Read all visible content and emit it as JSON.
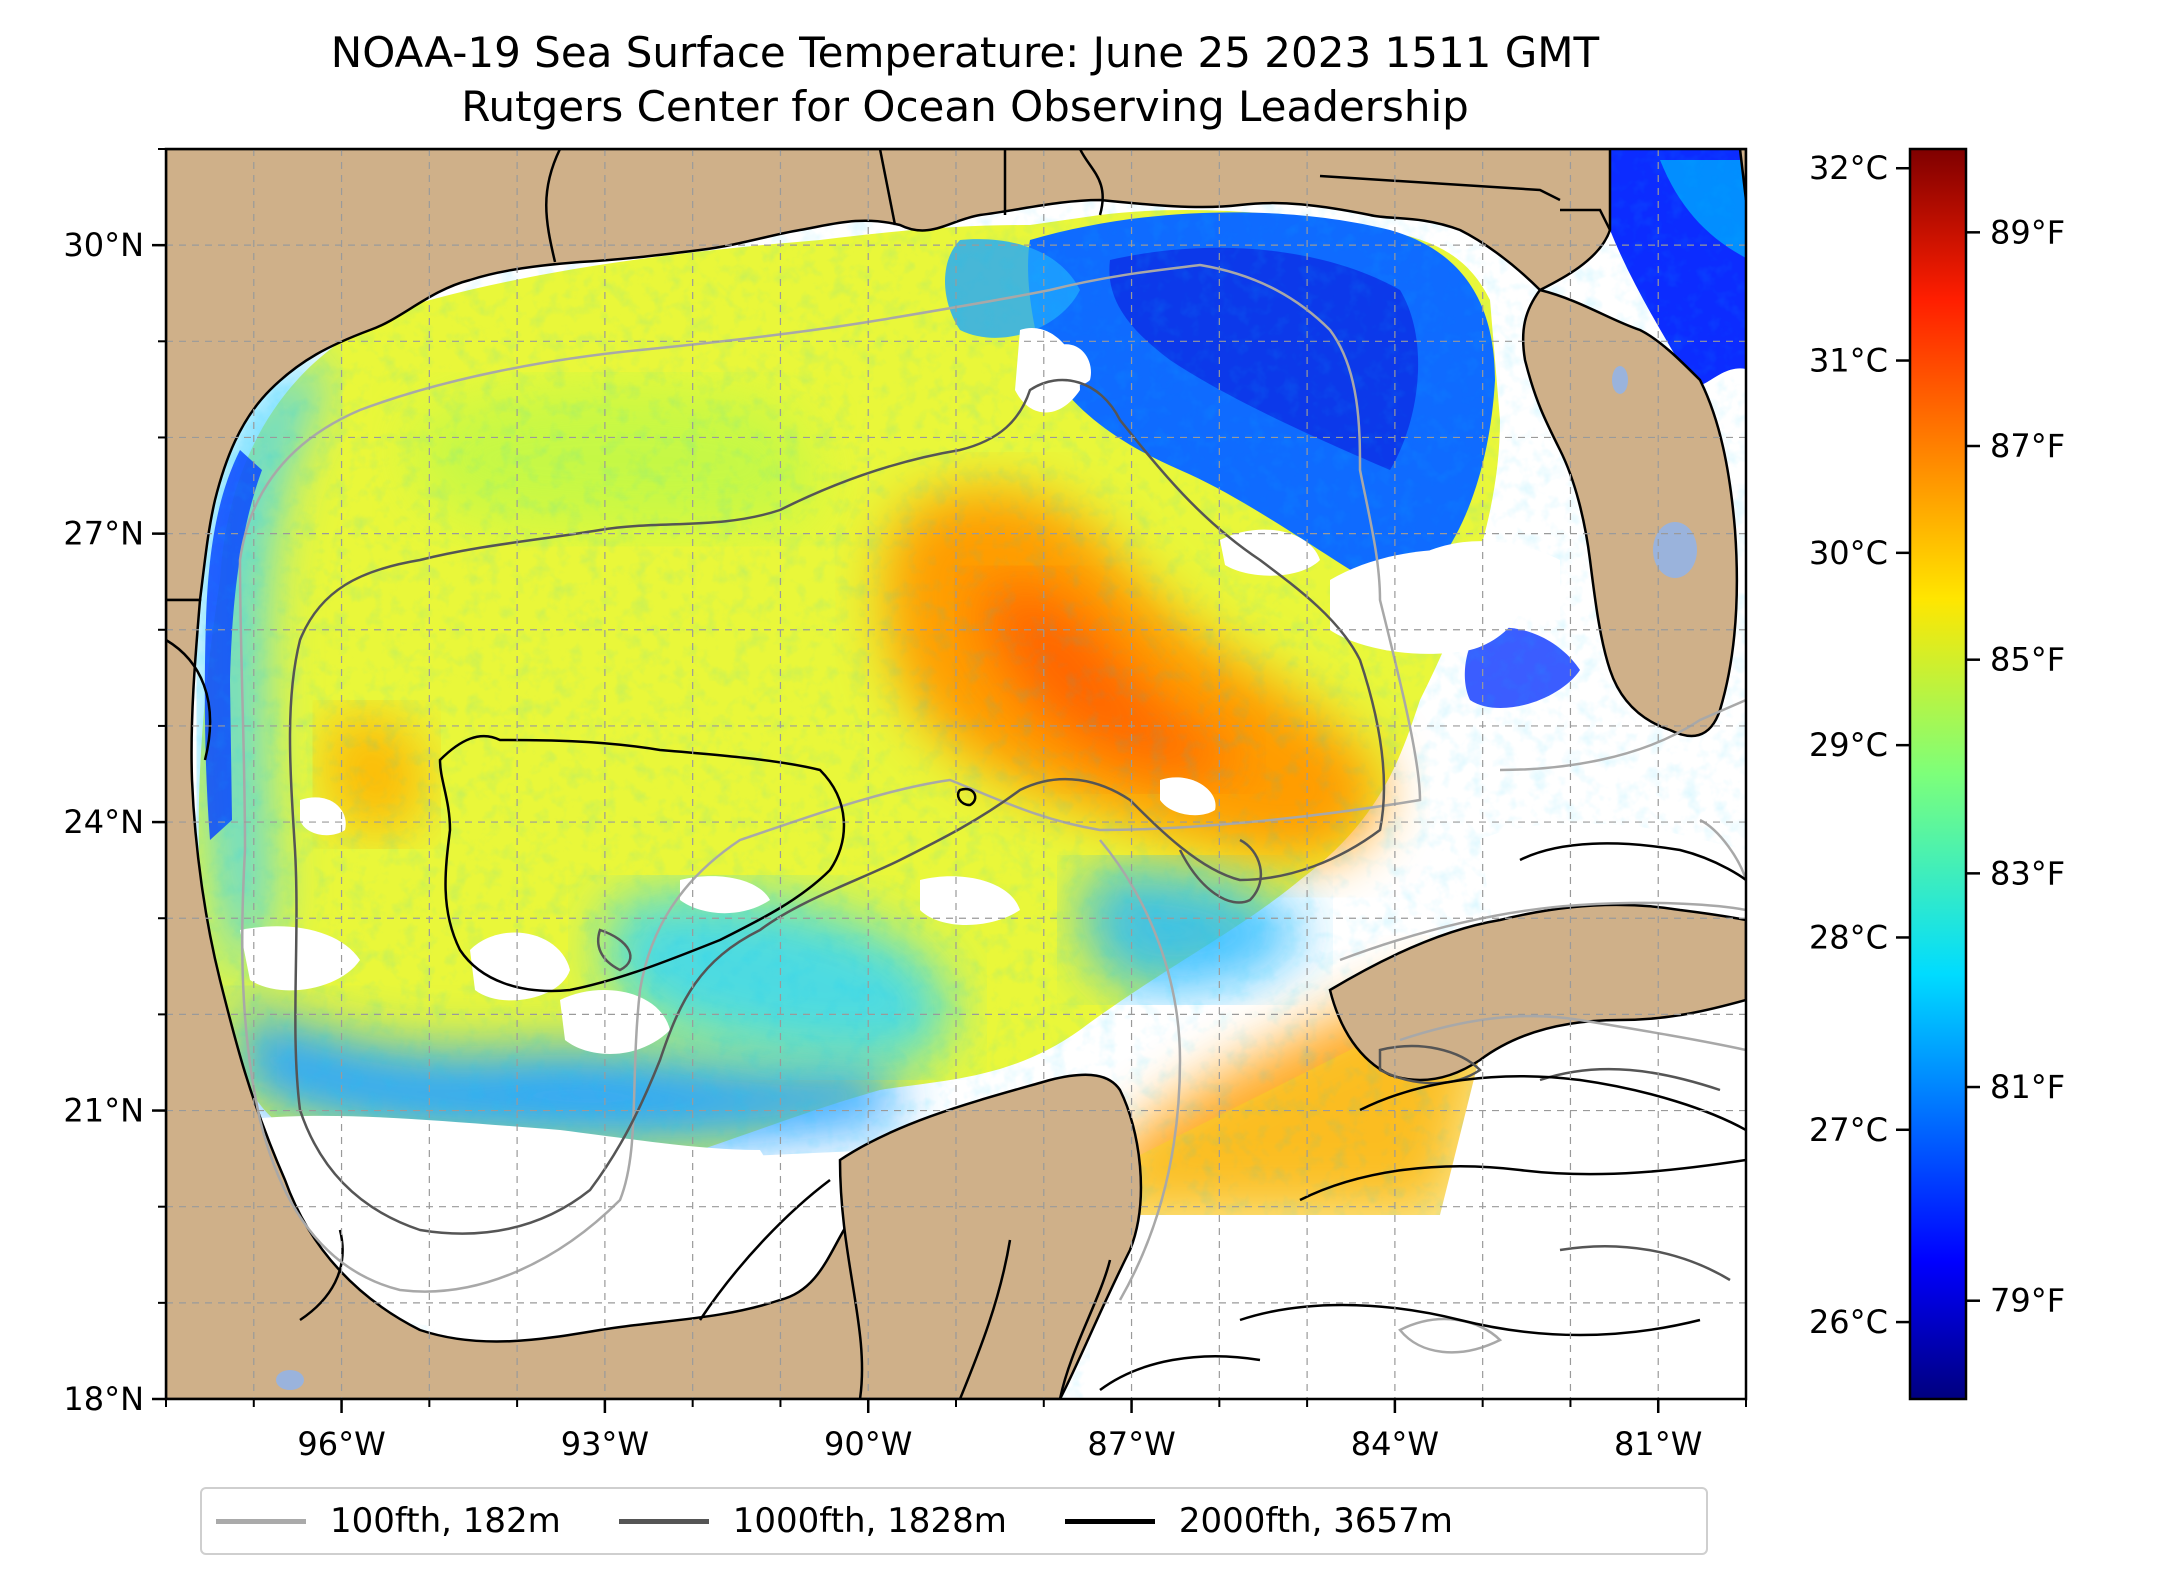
{
  "title": "NOAA-19 Sea Surface Temperature: June 25 2023 1511 GMT",
  "subtitle": "Rutgers Center for Ocean Observing Leadership",
  "map": {
    "lon_range": [
      -98.0,
      -80.0
    ],
    "lat_range": [
      18.0,
      31.0
    ],
    "lon_ticks": [
      {
        "value": -96,
        "label": "96°W"
      },
      {
        "value": -93,
        "label": "93°W"
      },
      {
        "value": -90,
        "label": "90°W"
      },
      {
        "value": -87,
        "label": "87°W"
      },
      {
        "value": -84,
        "label": "84°W"
      },
      {
        "value": -81,
        "label": "81°W"
      }
    ],
    "lat_ticks": [
      {
        "value": 18,
        "label": "18°N"
      },
      {
        "value": 21,
        "label": "21°N"
      },
      {
        "value": 24,
        "label": "24°N"
      },
      {
        "value": 27,
        "label": "27°N"
      },
      {
        "value": 30,
        "label": "30°N"
      }
    ],
    "land_color": "#cfb089",
    "gridlines": true
  },
  "colorbar": {
    "colormap": "jet",
    "range_c": [
      25.6,
      32.1
    ],
    "celsius_ticks": [
      {
        "value": 26,
        "label": "26°C"
      },
      {
        "value": 27,
        "label": "27°C"
      },
      {
        "value": 28,
        "label": "28°C"
      },
      {
        "value": 29,
        "label": "29°C"
      },
      {
        "value": 30,
        "label": "30°C"
      },
      {
        "value": 31,
        "label": "31°C"
      },
      {
        "value": 32,
        "label": "32°C"
      }
    ],
    "fahrenheit_ticks": [
      {
        "value": 79,
        "label": "79°F"
      },
      {
        "value": 81,
        "label": "81°F"
      },
      {
        "value": 83,
        "label": "83°F"
      },
      {
        "value": 85,
        "label": "85°F"
      },
      {
        "value": 87,
        "label": "87°F"
      },
      {
        "value": 89,
        "label": "89°F"
      }
    ]
  },
  "legend": {
    "placement": "bottom",
    "items": [
      {
        "label": "100fth, 182m",
        "color": "#aaaaaa"
      },
      {
        "label": "1000fth, 1828m",
        "color": "#555555"
      },
      {
        "label": "2000fth, 3657m",
        "color": "#000000"
      }
    ]
  }
}
